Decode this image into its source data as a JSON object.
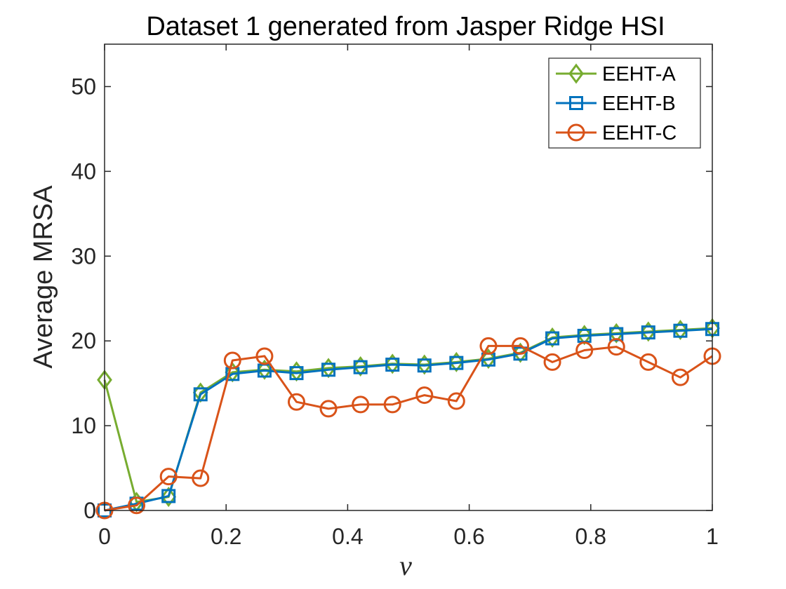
{
  "chart_data": {
    "type": "line",
    "title": "Dataset 1 generated from Jasper Ridge HSI",
    "xlabel": "ν",
    "ylabel": "Average MRSA",
    "xlim": [
      0,
      1
    ],
    "ylim": [
      0,
      55
    ],
    "xticks": [
      0,
      0.2,
      0.4,
      0.6,
      0.8,
      1
    ],
    "xtick_labels": [
      "0",
      "0.2",
      "0.4",
      "0.6",
      "0.8",
      "1"
    ],
    "yticks": [
      0,
      10,
      20,
      30,
      40,
      50
    ],
    "ytick_labels": [
      "0",
      "10",
      "20",
      "30",
      "40",
      "50"
    ],
    "grid": false,
    "box": true,
    "legend_position": "top-right",
    "x": [
      0,
      0.0526,
      0.1053,
      0.1579,
      0.2105,
      0.2632,
      0.3158,
      0.3684,
      0.4211,
      0.4737,
      0.5263,
      0.5789,
      0.6316,
      0.6842,
      0.7368,
      0.7895,
      0.8421,
      0.8947,
      0.9474,
      1.0
    ],
    "series": [
      {
        "name": "EEHT-A",
        "color": "#77AC30",
        "marker": "diamond",
        "values": [
          15.4,
          1.0,
          1.6,
          13.9,
          16.3,
          16.6,
          16.4,
          16.8,
          17.0,
          17.3,
          17.2,
          17.5,
          17.9,
          18.6,
          20.4,
          20.7,
          20.9,
          21.1,
          21.3,
          21.5
        ]
      },
      {
        "name": "EEHT-B",
        "color": "#0072BD",
        "marker": "square",
        "values": [
          0.0,
          0.8,
          1.7,
          13.7,
          16.1,
          16.5,
          16.2,
          16.6,
          16.9,
          17.2,
          17.1,
          17.4,
          17.8,
          18.5,
          20.3,
          20.6,
          20.8,
          21.0,
          21.2,
          21.4
        ]
      },
      {
        "name": "EEHT-C",
        "color": "#D95319",
        "marker": "circle",
        "values": [
          0.0,
          0.6,
          4.0,
          3.8,
          17.7,
          18.2,
          12.8,
          12.0,
          12.5,
          12.5,
          13.6,
          12.9,
          19.4,
          19.4,
          17.5,
          18.9,
          19.3,
          17.5,
          15.7,
          18.2
        ]
      }
    ]
  }
}
